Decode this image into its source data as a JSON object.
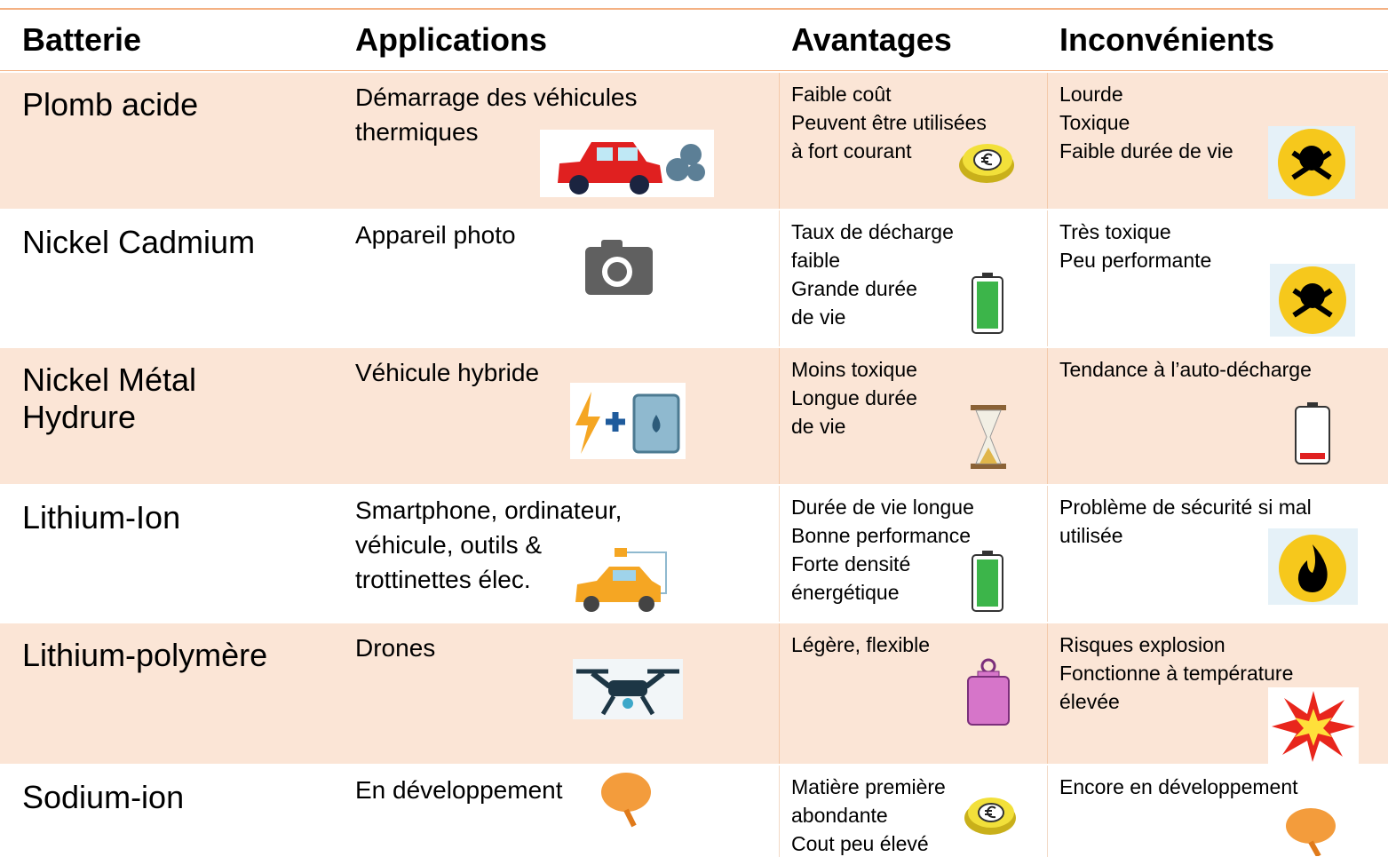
{
  "table": {
    "header": [
      "Batterie",
      "Applications",
      "Avantages",
      "Inconvénients"
    ],
    "rows": [
      [
        [
          "Plomb acide"
        ],
        [
          "Démarrage des véhicules",
          "thermiques"
        ],
        [
          "Faible coût",
          "Peuvent être utilisées",
          "à fort courant"
        ],
        [
          "Lourde",
          "Toxique",
          "Faible durée de vie"
        ]
      ],
      [
        [
          "Nickel Cadmium"
        ],
        [
          "Appareil photo"
        ],
        [
          "Taux de décharge",
          "faible",
          "Grande durée",
          "de vie"
        ],
        [
          "Très toxique",
          "Peu performante"
        ]
      ],
      [
        [
          "Nickel Métal",
          "Hydrure"
        ],
        [
          "Véhicule hybride"
        ],
        [
          "Moins toxique",
          "Longue durée",
          "de vie"
        ],
        [
          "Tendance à l’auto-décharge"
        ]
      ],
      [
        [
          "Lithium-Ion"
        ],
        [
          "Smartphone, ordinateur,",
          "véhicule, outils &",
          "trottinettes élec."
        ],
        [
          "Durée de vie longue",
          "Bonne performance",
          "Forte densité",
          "énergétique"
        ],
        [
          "Problème de sécurité si mal",
          "utilisée"
        ]
      ],
      [
        [
          "Lithium-polymère"
        ],
        [
          "Drones"
        ],
        [
          "Légère, flexible"
        ],
        [
          "Risques explosion",
          "Fonctionne à température",
          "élevée"
        ]
      ],
      [
        [
          "Sodium-ion"
        ],
        [
          "En développement"
        ],
        [
          "Matière première",
          "abondante",
          "Cout peu élevé"
        ],
        [
          "Encore en développement"
        ]
      ]
    ]
  }
}
